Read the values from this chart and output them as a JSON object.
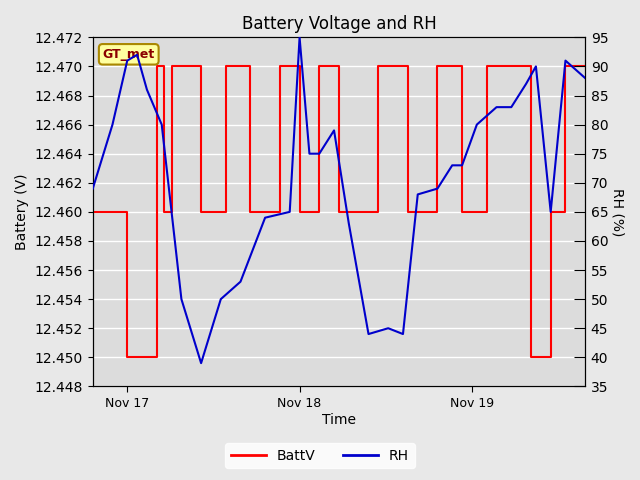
{
  "title": "Battery Voltage and RH",
  "xlabel": "Time",
  "ylabel_left": "Battery (V)",
  "ylabel_right": "RH (%)",
  "xlim": [
    0,
    1
  ],
  "ylim_left": [
    12.448,
    12.472
  ],
  "ylim_right": [
    35,
    95
  ],
  "yticks_left": [
    12.448,
    12.45,
    12.452,
    12.454,
    12.456,
    12.458,
    12.46,
    12.462,
    12.464,
    12.466,
    12.468,
    12.47,
    12.472
  ],
  "yticks_right": [
    35,
    40,
    45,
    50,
    55,
    60,
    65,
    70,
    75,
    80,
    85,
    90,
    95
  ],
  "xtick_labels": [
    "Nov 17",
    "Nov 18",
    "Nov 19"
  ],
  "xtick_positions": [
    0.07,
    0.42,
    0.77
  ],
  "bg_color": "#e8e8e8",
  "plot_bg_color": "#dcdcdc",
  "grid_color": "#ffffff",
  "legend_label_batt": "BattV",
  "legend_label_rh": "RH",
  "batt_color": "#ff0000",
  "rh_color": "#0000cc",
  "watermark_text": "GT_met",
  "watermark_bg": "#ffffa0",
  "watermark_border": "#aa8800",
  "watermark_text_color": "#8b0000",
  "batt_x": [
    0.0,
    0.07,
    0.07,
    0.13,
    0.13,
    0.145,
    0.145,
    0.16,
    0.16,
    0.22,
    0.22,
    0.27,
    0.27,
    0.32,
    0.32,
    0.38,
    0.38,
    0.42,
    0.42,
    0.46,
    0.46,
    0.5,
    0.5,
    0.58,
    0.58,
    0.64,
    0.64,
    0.7,
    0.7,
    0.75,
    0.75,
    0.8,
    0.8,
    0.89,
    0.89,
    0.93,
    0.93,
    0.96,
    0.96,
    1.0
  ],
  "batt_y": [
    12.46,
    12.46,
    12.45,
    12.45,
    12.47,
    12.47,
    12.46,
    12.46,
    12.47,
    12.47,
    12.46,
    12.46,
    12.47,
    12.47,
    12.46,
    12.46,
    12.47,
    12.47,
    12.46,
    12.46,
    12.47,
    12.47,
    12.46,
    12.46,
    12.47,
    12.47,
    12.46,
    12.46,
    12.47,
    12.47,
    12.46,
    12.46,
    12.47,
    12.47,
    12.45,
    12.45,
    12.46,
    12.46,
    12.47,
    12.47
  ],
  "rh_x": [
    0.0,
    0.04,
    0.07,
    0.09,
    0.11,
    0.14,
    0.18,
    0.22,
    0.26,
    0.3,
    0.35,
    0.4,
    0.42,
    0.44,
    0.46,
    0.49,
    0.52,
    0.56,
    0.6,
    0.63,
    0.66,
    0.7,
    0.73,
    0.75,
    0.78,
    0.82,
    0.85,
    0.88,
    0.9,
    0.93,
    0.96,
    1.0
  ],
  "rh_y": [
    69,
    80,
    91,
    92,
    86,
    80,
    50,
    39,
    50,
    53,
    64,
    65,
    95,
    75,
    75,
    79,
    63,
    44,
    45,
    44,
    68,
    69,
    73,
    73,
    80,
    83,
    83,
    87,
    90,
    65,
    91,
    88
  ]
}
